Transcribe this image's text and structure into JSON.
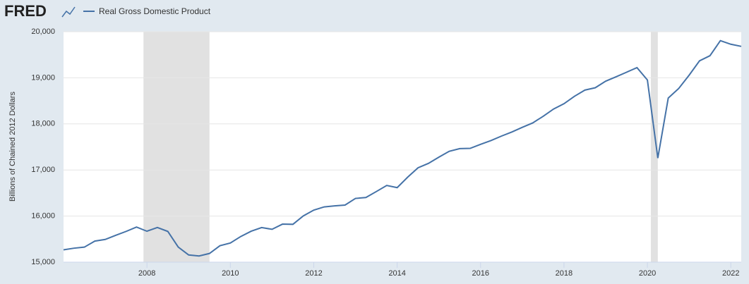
{
  "chart_data": {
    "type": "line",
    "logo": "FRED",
    "y_label": "Billions of Chained 2012 Dollars",
    "x": [
      2006,
      2006.25,
      2006.5,
      2006.75,
      2007,
      2007.25,
      2007.5,
      2007.75,
      2008,
      2008.25,
      2008.5,
      2008.75,
      2009,
      2009.25,
      2009.5,
      2009.75,
      2010,
      2010.25,
      2010.5,
      2010.75,
      2011,
      2011.25,
      2011.5,
      2011.75,
      2012,
      2012.25,
      2012.5,
      2012.75,
      2013,
      2013.25,
      2013.5,
      2013.75,
      2014,
      2014.25,
      2014.5,
      2014.75,
      2015,
      2015.25,
      2015.5,
      2015.75,
      2016,
      2016.25,
      2016.5,
      2016.75,
      2017,
      2017.25,
      2017.5,
      2017.75,
      2018,
      2018.25,
      2018.5,
      2018.75,
      2019,
      2019.25,
      2019.5,
      2019.75,
      2020,
      2020.25,
      2020.5,
      2020.75,
      2021,
      2021.25,
      2021.5,
      2021.75,
      2022,
      2022.25
    ],
    "series": [
      {
        "name": "Real Gross Domestic Product",
        "color": "#4572a7",
        "values": [
          15267,
          15303,
          15326,
          15457,
          15493,
          15582,
          15667,
          15762,
          15671,
          15752,
          15667,
          15328,
          15156,
          15134,
          15189,
          15356,
          15415,
          15557,
          15672,
          15751,
          15713,
          15825,
          15821,
          16004,
          16129,
          16199,
          16221,
          16239,
          16383,
          16403,
          16532,
          16664,
          16617,
          16842,
          17047,
          17143,
          17278,
          17406,
          17463,
          17469,
          17557,
          17639,
          17735,
          17824,
          17925,
          18021,
          18164,
          18323,
          18438,
          18598,
          18733,
          18784,
          18927,
          19022,
          19121,
          19221,
          18952,
          17258,
          18561,
          18768,
          19056,
          19368,
          19479,
          19806,
          19728,
          19682
        ]
      }
    ],
    "recessions": [
      [
        2007.917,
        2009.5
      ],
      [
        2020.083,
        2020.25
      ]
    ],
    "recession_color": "#e1e1e1",
    "xlim": [
      2006,
      2022.25
    ],
    "xticks": [
      2008,
      2010,
      2012,
      2014,
      2016,
      2018,
      2020,
      2022
    ],
    "ylim": [
      15000,
      20000
    ],
    "yticks": [
      {
        "value": 15000,
        "label": "15,000"
      },
      {
        "value": 16000,
        "label": "16,000"
      },
      {
        "value": 17000,
        "label": "17,000"
      },
      {
        "value": 18000,
        "label": "18,000"
      },
      {
        "value": 19000,
        "label": "19,000"
      },
      {
        "value": 20000,
        "label": "20,000"
      }
    ],
    "grid": true
  }
}
